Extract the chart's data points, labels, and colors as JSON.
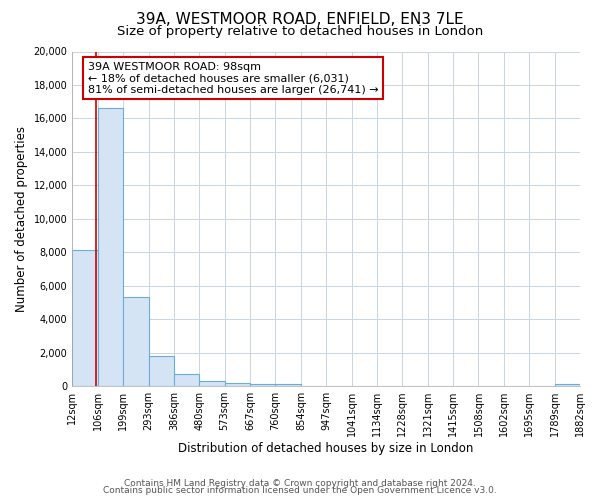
{
  "title": "39A, WESTMOOR ROAD, ENFIELD, EN3 7LE",
  "subtitle": "Size of property relative to detached houses in London",
  "xlabel": "Distribution of detached houses by size in London",
  "ylabel": "Number of detached properties",
  "bin_edges": [
    12,
    106,
    199,
    293,
    386,
    480,
    573,
    667,
    760,
    854,
    947,
    1041,
    1134,
    1228,
    1321,
    1415,
    1508,
    1602,
    1695,
    1789,
    1882
  ],
  "bin_labels": [
    "12sqm",
    "106sqm",
    "199sqm",
    "293sqm",
    "386sqm",
    "480sqm",
    "573sqm",
    "667sqm",
    "760sqm",
    "854sqm",
    "947sqm",
    "1041sqm",
    "1134sqm",
    "1228sqm",
    "1321sqm",
    "1415sqm",
    "1508sqm",
    "1602sqm",
    "1695sqm",
    "1789sqm",
    "1882sqm"
  ],
  "bar_heights": [
    8150,
    16600,
    5300,
    1800,
    700,
    300,
    200,
    150,
    100,
    0,
    0,
    0,
    0,
    0,
    0,
    0,
    0,
    0,
    0,
    150
  ],
  "bar_color": "#d4e4f5",
  "bar_edge_color": "#6aaed6",
  "property_line_x": 98,
  "property_line_color": "#cc0000",
  "annotation_text_line1": "39A WESTMOOR ROAD: 98sqm",
  "annotation_text_line2": "← 18% of detached houses are smaller (6,031)",
  "annotation_text_line3": "81% of semi-detached houses are larger (26,741) →",
  "annotation_box_color": "#ffffff",
  "annotation_box_edge_color": "#cc0000",
  "ylim": [
    0,
    20000
  ],
  "yticks": [
    0,
    2000,
    4000,
    6000,
    8000,
    10000,
    12000,
    14000,
    16000,
    18000,
    20000
  ],
  "footer_line1": "Contains HM Land Registry data © Crown copyright and database right 2024.",
  "footer_line2": "Contains public sector information licensed under the Open Government Licence v3.0.",
  "fig_background": "#ffffff",
  "plot_background": "#ffffff",
  "grid_color": "#c8d4e0",
  "title_fontsize": 11,
  "subtitle_fontsize": 9.5,
  "axis_label_fontsize": 8.5,
  "tick_fontsize": 7,
  "annotation_fontsize": 8,
  "footer_fontsize": 6.5
}
